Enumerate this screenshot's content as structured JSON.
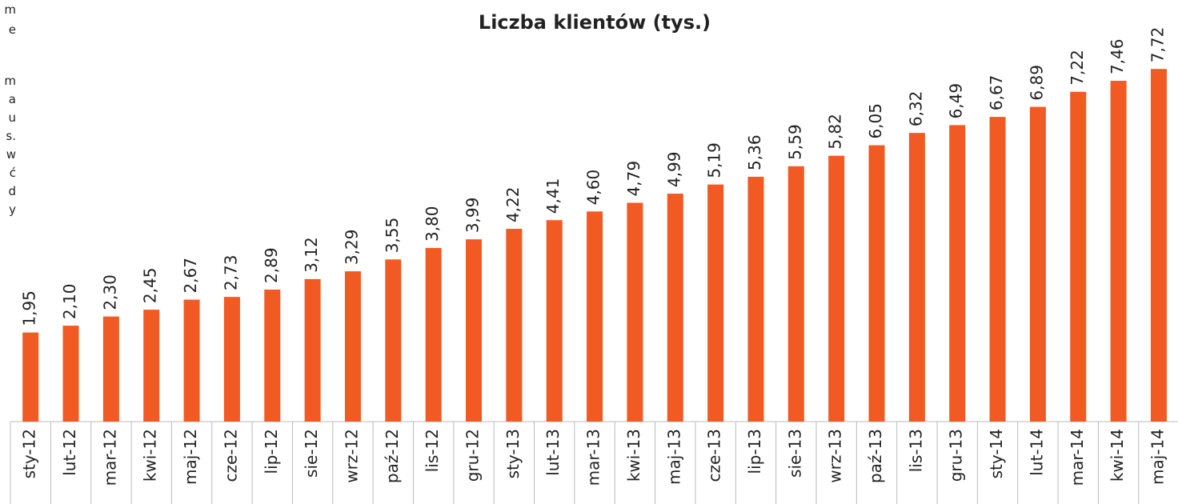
{
  "side_text": [
    "m",
    "e",
    "m",
    "a",
    "u",
    "s.",
    "w",
    "ć",
    "d",
    "y"
  ],
  "chart_data": {
    "type": "bar",
    "title": "Liczba klientów (tys.)",
    "categories": [
      "sty-12",
      "lut-12",
      "mar-12",
      "kwi-12",
      "maj-12",
      "cze-12",
      "lip-12",
      "sie-12",
      "wrz-12",
      "paź-12",
      "lis-12",
      "gru-12",
      "sty-13",
      "lut-13",
      "mar-13",
      "kwi-13",
      "maj-13",
      "cze-13",
      "lip-13",
      "sie-13",
      "wrz-13",
      "paź-13",
      "lis-13",
      "gru-13",
      "sty-14",
      "lut-14",
      "mar-14",
      "kwi-14",
      "maj-14"
    ],
    "values": [
      1.95,
      2.1,
      2.3,
      2.45,
      2.67,
      2.73,
      2.89,
      3.12,
      3.29,
      3.55,
      3.8,
      3.99,
      4.22,
      4.41,
      4.6,
      4.79,
      4.99,
      5.19,
      5.36,
      5.59,
      5.82,
      6.05,
      6.32,
      6.49,
      6.67,
      6.89,
      7.22,
      7.46,
      7.72
    ],
    "value_labels": [
      "1,95",
      "2,10",
      "2,30",
      "2,45",
      "2,67",
      "2,73",
      "2,89",
      "3,12",
      "3,29",
      "3,55",
      "3,80",
      "3,99",
      "4,22",
      "4,41",
      "4,60",
      "4,79",
      "4,99",
      "5,19",
      "5,36",
      "5,59",
      "5,82",
      "6,05",
      "6,32",
      "6,49",
      "6,67",
      "6,89",
      "7,22",
      "7,46",
      "7,72"
    ],
    "color": "#f15a22"
  }
}
